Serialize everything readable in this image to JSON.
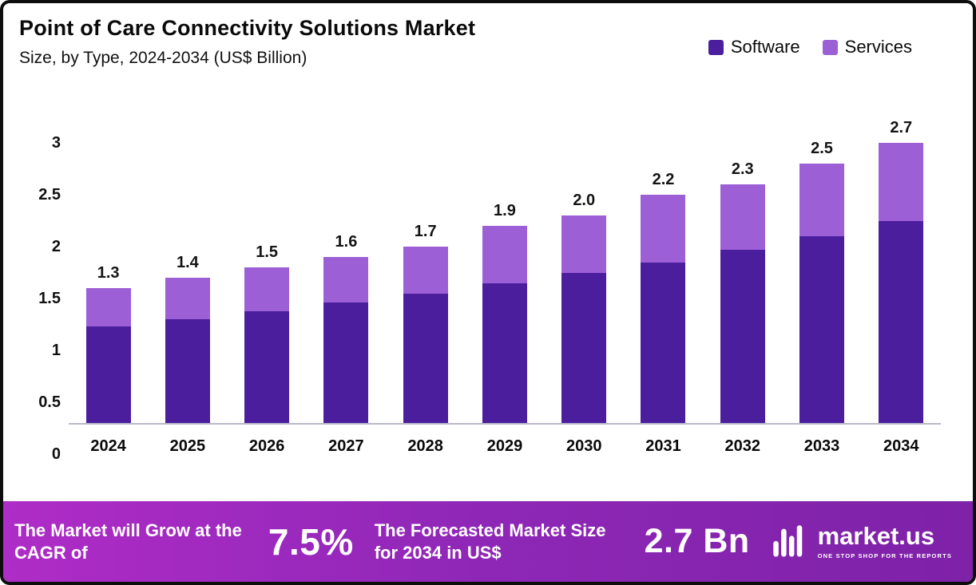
{
  "header": {
    "title": "Point of Care Connectivity Solutions Market",
    "subtitle": "Size, by Type, 2024-2034 (US$ Billion)"
  },
  "legend": {
    "items": [
      {
        "label": "Software",
        "color": "#4B1E9E"
      },
      {
        "label": "Services",
        "color": "#9C5FD6"
      }
    ]
  },
  "chart_data": {
    "type": "bar",
    "stacked": true,
    "title": "Point of Care Connectivity Solutions Market",
    "subtitle": "Size, by Type, 2024-2034 (US$ Billion)",
    "xlabel": "",
    "ylabel": "US$ Billion",
    "categories": [
      "2024",
      "2025",
      "2026",
      "2027",
      "2028",
      "2029",
      "2030",
      "2031",
      "2032",
      "2033",
      "2034"
    ],
    "series": [
      {
        "name": "Software",
        "color": "#4B1E9E",
        "values": [
          0.93,
          1.0,
          1.08,
          1.16,
          1.25,
          1.35,
          1.45,
          1.55,
          1.67,
          1.8,
          1.95
        ]
      },
      {
        "name": "Services",
        "color": "#9C5FD6",
        "values": [
          0.37,
          0.4,
          0.42,
          0.44,
          0.45,
          0.55,
          0.55,
          0.65,
          0.63,
          0.7,
          0.75
        ]
      }
    ],
    "total_labels": [
      "1.3",
      "1.4",
      "1.5",
      "1.6",
      "1.7",
      "1.9",
      "2.0",
      "2.2",
      "2.3",
      "2.5",
      "2.7"
    ],
    "ylim": [
      0,
      3
    ],
    "yticks": [
      0,
      0.5,
      1,
      1.5,
      2,
      2.5,
      3
    ],
    "grid": false,
    "legend_position": "top-right"
  },
  "banner": {
    "cagr_text": "The Market will Grow at the CAGR of",
    "cagr_value": "7.5%",
    "forecast_text": "The Forecasted Market Size for 2034 in US$",
    "forecast_value": "2.7 Bn",
    "logo": {
      "name": "market.us",
      "tagline": "ONE STOP SHOP FOR THE REPORTS"
    },
    "gradient": [
      "#AF2CC7",
      "#8E27B6",
      "#7E22A8"
    ],
    "axis_color": "#b9b9c9"
  }
}
